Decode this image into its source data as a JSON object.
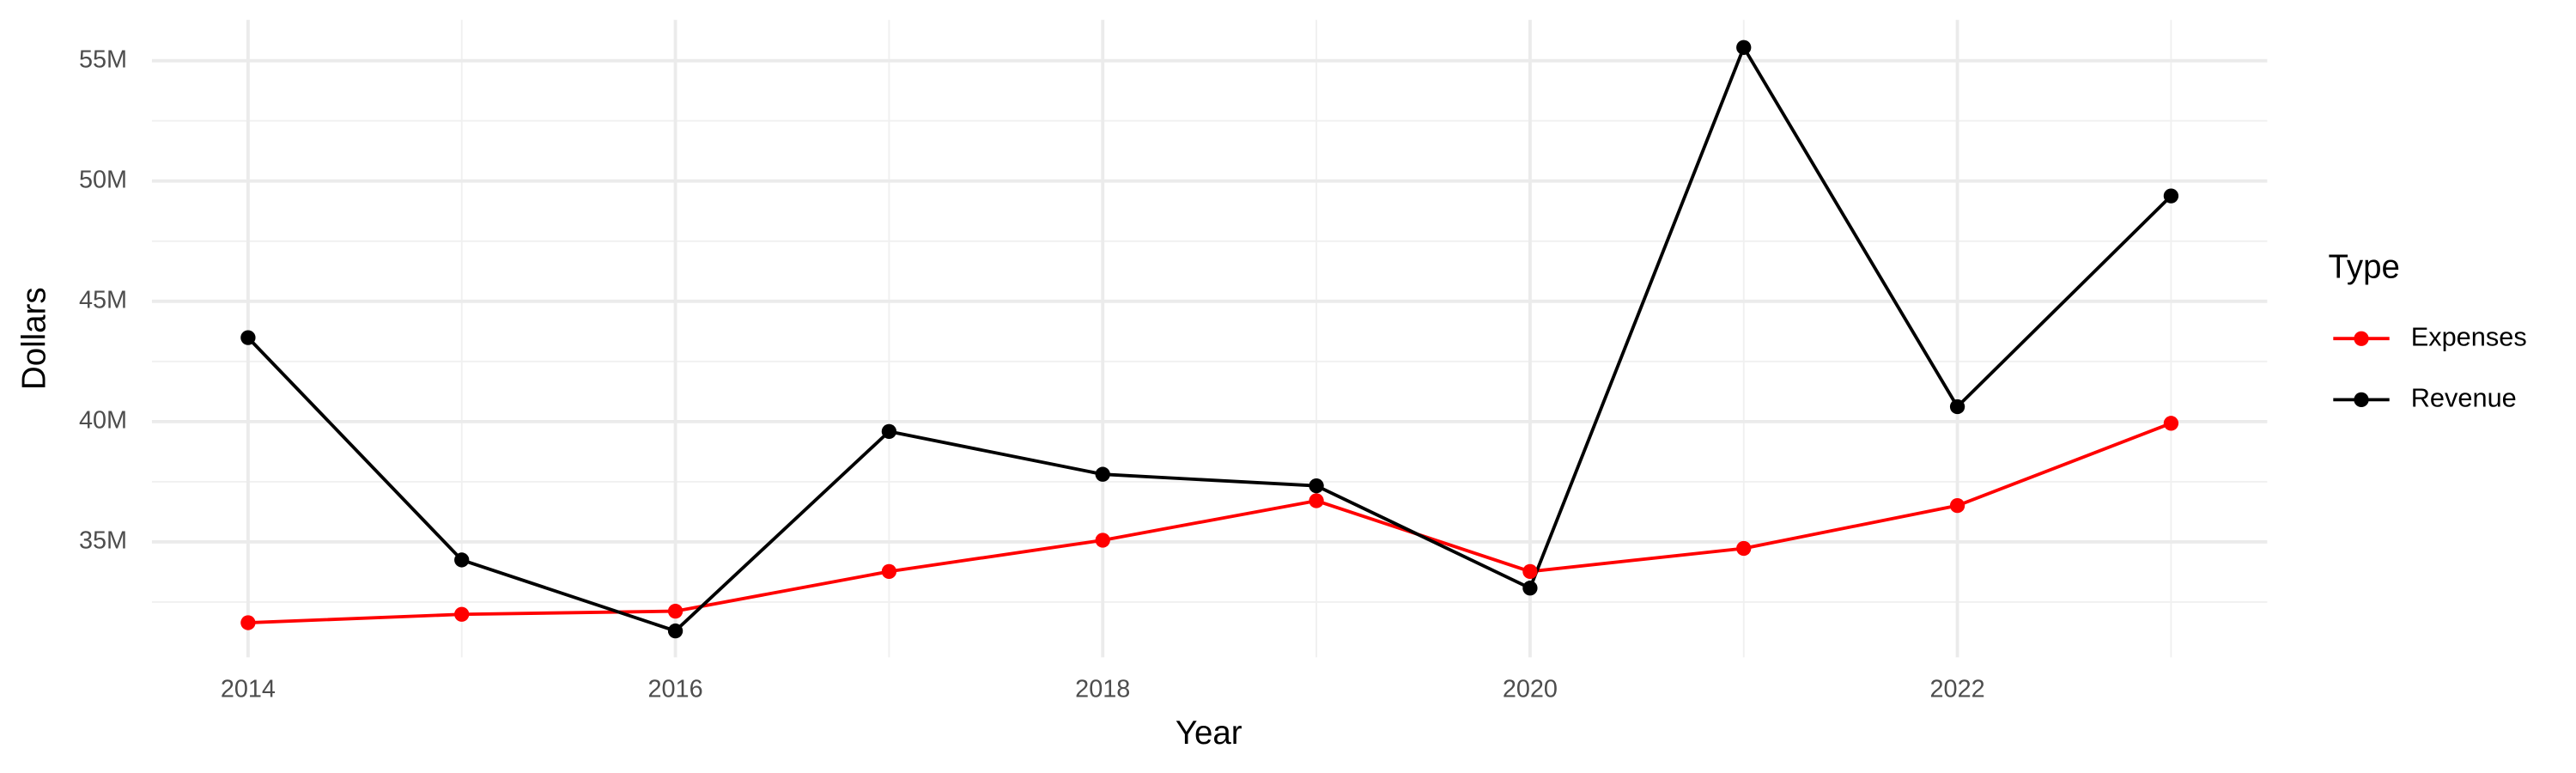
{
  "chart_data": {
    "type": "line",
    "x_label": "Year",
    "y_label": "Dollars",
    "legend_title": "Type",
    "legend_position": "right",
    "x": [
      2014,
      2015,
      2016,
      2017,
      2018,
      2019,
      2020,
      2021,
      2022,
      2023
    ],
    "series": [
      {
        "name": "Expenses",
        "color": "#ff0000",
        "values": [
          31640000,
          31990000,
          32120000,
          33770000,
          35070000,
          36710000,
          33770000,
          34730000,
          36510000,
          39930000
        ]
      },
      {
        "name": "Revenue",
        "color": "#000000",
        "values": [
          43490000,
          34250000,
          31300000,
          39590000,
          37810000,
          37330000,
          33080000,
          55550000,
          40620000,
          49380000
        ]
      }
    ],
    "xlim": [
      2013.55,
      2023.45
    ],
    "xticks": [
      2014,
      2016,
      2018,
      2020,
      2022
    ],
    "xminor": [
      2015,
      2017,
      2019,
      2021,
      2023
    ],
    "ylim": [
      30200000,
      56700000
    ],
    "yticks": [
      {
        "value": 35000000,
        "label": "35M"
      },
      {
        "value": 40000000,
        "label": "40M"
      },
      {
        "value": 45000000,
        "label": "45M"
      },
      {
        "value": 50000000,
        "label": "50M"
      },
      {
        "value": 55000000,
        "label": "55M"
      }
    ],
    "yminor": [
      32500000,
      37500000,
      42500000,
      47500000,
      52500000
    ],
    "grid": true
  }
}
